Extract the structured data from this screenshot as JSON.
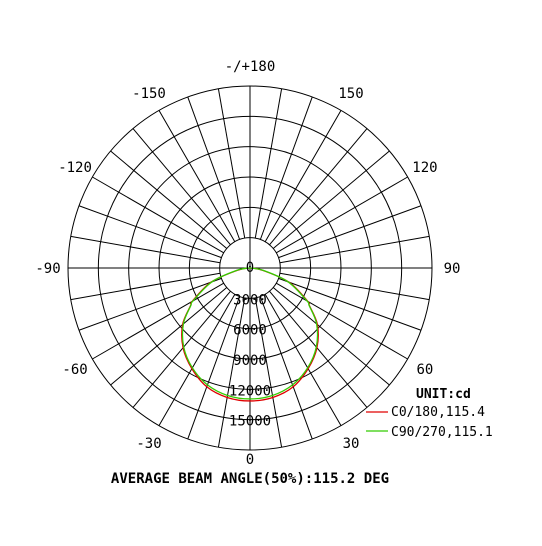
{
  "chart_data": {
    "type": "polar",
    "unit_label": "UNIT:cd",
    "angle_labels": [
      {
        "angle": 180,
        "text": "-/+180"
      },
      {
        "angle": 150,
        "text": "150"
      },
      {
        "angle": -150,
        "text": "-150"
      },
      {
        "angle": 120,
        "text": "120"
      },
      {
        "angle": -120,
        "text": "-120"
      },
      {
        "angle": 90,
        "text": "90"
      },
      {
        "angle": -90,
        "text": "-90"
      },
      {
        "angle": 60,
        "text": "60"
      },
      {
        "angle": -60,
        "text": "-60"
      },
      {
        "angle": 30,
        "text": "30"
      },
      {
        "angle": -30,
        "text": "-30"
      },
      {
        "angle": 0,
        "text": "0"
      }
    ],
    "radial_ticks": [
      0,
      3000,
      6000,
      9000,
      12000,
      15000
    ],
    "radial_tick_labels": [
      "0",
      "3000",
      "6000",
      "9000",
      "12000",
      "15000"
    ],
    "r_max": 18000,
    "inner_hole": 3000,
    "spoke_step_deg": 10,
    "series": [
      {
        "name": "C0/180,115.4",
        "color": "#e00000",
        "angles": [
          -90,
          -80,
          -70,
          -60,
          -57.7,
          -50,
          -40,
          -30,
          -20,
          -10,
          0,
          10,
          20,
          30,
          40,
          50,
          57.7,
          60,
          70,
          80,
          90
        ],
        "values": [
          0,
          1200,
          4100,
          6600,
          6950,
          8700,
          10300,
          11500,
          12500,
          13000,
          13150,
          13000,
          12500,
          11500,
          10300,
          8700,
          6950,
          6600,
          4100,
          1200,
          0
        ]
      },
      {
        "name": "C90/270,115.1",
        "color": "#33cc00",
        "angles": [
          -90,
          -80,
          -70,
          -60,
          -57.5,
          -50,
          -40,
          -30,
          -20,
          -10,
          0,
          10,
          20,
          30,
          40,
          50,
          57.5,
          60,
          70,
          80,
          90
        ],
        "values": [
          0,
          1300,
          4000,
          6500,
          6950,
          8600,
          10200,
          11400,
          12300,
          12800,
          12950,
          12800,
          12300,
          11400,
          10200,
          8600,
          6950,
          6500,
          4000,
          1300,
          0
        ]
      }
    ]
  },
  "caption": "AVERAGE BEAM ANGLE(50%):115.2 DEG"
}
